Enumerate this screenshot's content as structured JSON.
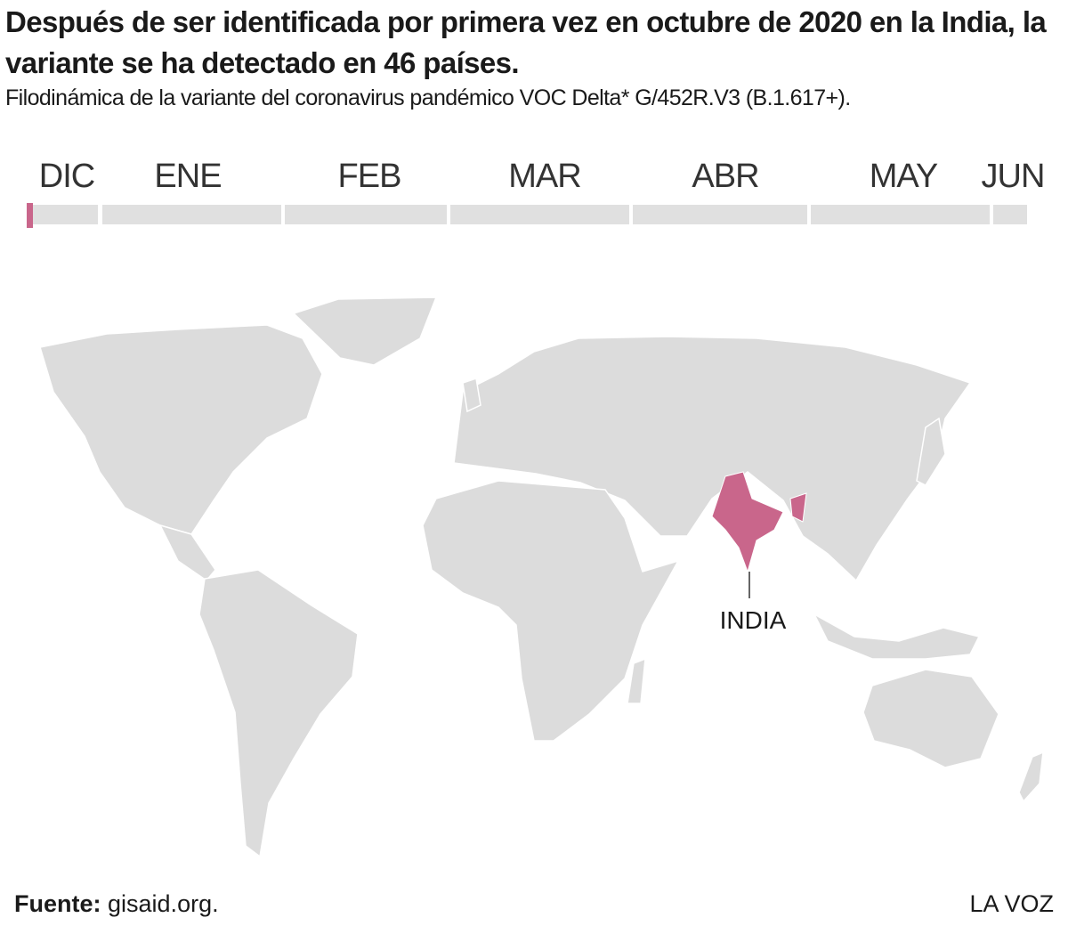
{
  "header": {
    "title": "Después de ser identificada por primera vez en octubre de 2020 en la India, la variante se ha detectado en 46 países.",
    "subtitle": "Filodinámica de la variante del coronavirus pandémico VOC Delta* G/452R.V3 (B.1.617+)."
  },
  "timeline": {
    "months": [
      "DIC",
      "ENE",
      "FEB",
      "MAR",
      "ABR",
      "MAY",
      "JUN"
    ]
  },
  "map": {
    "highlight_label": "INDIA"
  },
  "footer": {
    "source_label": "Fuente:",
    "source": "gisaid.org.",
    "brand": "LA VOZ"
  }
}
